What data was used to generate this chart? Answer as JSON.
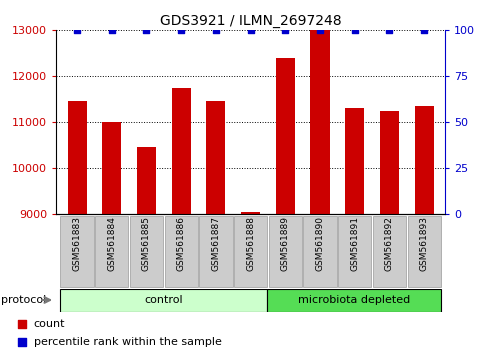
{
  "title": "GDS3921 / ILMN_2697248",
  "samples": [
    "GSM561883",
    "GSM561884",
    "GSM561885",
    "GSM561886",
    "GSM561887",
    "GSM561888",
    "GSM561889",
    "GSM561890",
    "GSM561891",
    "GSM561892",
    "GSM561893"
  ],
  "counts": [
    11450,
    11000,
    10450,
    11750,
    11450,
    9050,
    12400,
    13000,
    11300,
    11250,
    11350
  ],
  "groups": [
    "control",
    "control",
    "control",
    "control",
    "control",
    "control",
    "microbiota depleted",
    "microbiota depleted",
    "microbiota depleted",
    "microbiota depleted",
    "microbiota depleted"
  ],
  "bar_color": "#cc0000",
  "dot_color": "#0000cc",
  "ylim_left": [
    9000,
    13000
  ],
  "ylim_right": [
    0,
    100
  ],
  "yticks_left": [
    9000,
    10000,
    11000,
    12000,
    13000
  ],
  "yticks_right": [
    0,
    25,
    50,
    75,
    100
  ],
  "bg_color": "#ffffff",
  "label_color_left": "#cc0000",
  "label_color_right": "#0000cc",
  "control_color": "#ccffcc",
  "microbiota_color": "#55dd55",
  "gray_tick_color": "#cccccc",
  "protocol_label": "protocol",
  "legend_count": "count",
  "legend_pct": "percentile rank within the sample",
  "n_control": 6,
  "n_micro": 5
}
